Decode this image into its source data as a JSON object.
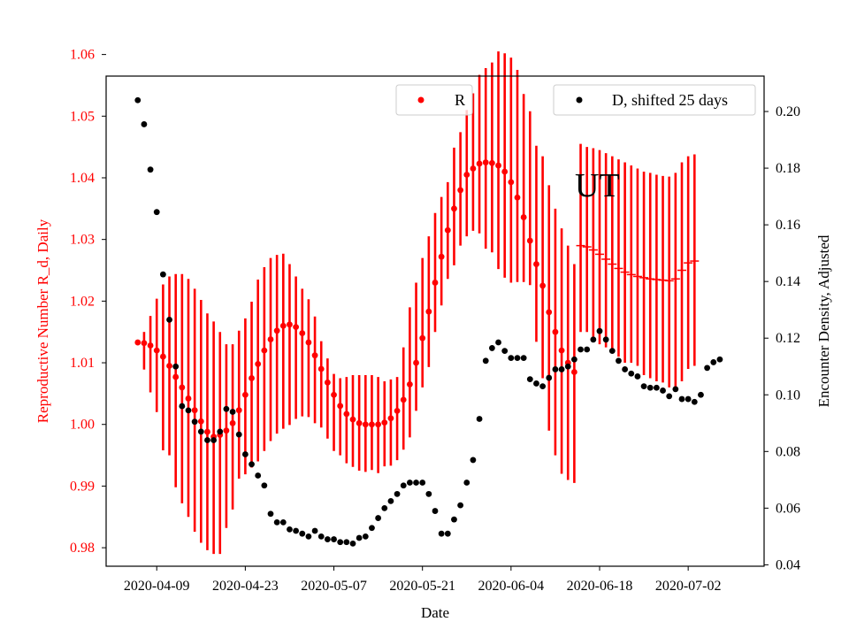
{
  "chart_data": {
    "type": "scatter",
    "title": "",
    "xlabel": "Date",
    "ylabel_left": "Reproductive Number R_d, Daily",
    "ylabel_right": "Encounter Density, Adjusted",
    "annotation": "UT",
    "colors": {
      "r_series": "#ff0000",
      "d_series": "#000000",
      "left_axis_text": "#ff0000"
    },
    "x_start": "2020-04-06",
    "x_end": "2020-07-09",
    "xlim": [
      "2020-04-01",
      "2020-07-14"
    ],
    "y_left_lim": [
      0.977,
      1.0565
    ],
    "y_right_lim": [
      0.0395,
      0.2125
    ],
    "x_ticks": [
      "2020-04-09",
      "2020-04-23",
      "2020-05-07",
      "2020-05-21",
      "2020-06-04",
      "2020-06-18",
      "2020-07-02"
    ],
    "y_left_ticks": [
      "0.98",
      "0.99",
      "1.00",
      "1.01",
      "1.02",
      "1.03",
      "1.04",
      "1.05",
      "1.06"
    ],
    "y_right_ticks": [
      "0.04",
      "0.06",
      "0.08",
      "0.10",
      "0.12",
      "0.14",
      "0.16",
      "0.18",
      "0.20"
    ],
    "legend": [
      {
        "label": "R",
        "color": "#ff0000",
        "placement": "top-center"
      },
      {
        "label": "D, shifted 25 days",
        "color": "#000000",
        "placement": "top-right"
      }
    ],
    "series": [
      {
        "name": "R",
        "axis": "left",
        "color": "#ff0000",
        "y": [
          1.0133,
          1.0132,
          1.0128,
          1.012,
          1.011,
          1.0095,
          1.0077,
          1.006,
          1.0042,
          1.0023,
          1.0005,
          0.9988,
          0.998,
          0.9983,
          0.999,
          1.0002,
          1.0023,
          1.0048,
          1.0075,
          1.0098,
          1.012,
          1.0138,
          1.0152,
          1.016,
          1.0162,
          1.0158,
          1.0148,
          1.0133,
          1.0112,
          1.009,
          1.0068,
          1.0048,
          1.003,
          1.0017,
          1.0008,
          1.0002,
          1.0,
          1.0,
          1.0,
          1.0003,
          1.001,
          1.0022,
          1.004,
          1.0065,
          1.01,
          1.014,
          1.0183,
          1.023,
          1.0272,
          1.0315,
          1.035,
          1.038,
          1.0405,
          1.0415,
          1.0423,
          1.0425,
          1.0424,
          1.042,
          1.041,
          1.0393,
          1.0368,
          1.0336,
          1.0298,
          1.026,
          1.0225,
          1.0182,
          1.015,
          1.012,
          1.01,
          1.0085,
          1.029,
          1.0288,
          1.0283,
          1.0276,
          1.0268,
          1.026,
          1.0253,
          1.0247,
          1.0243,
          1.024,
          1.0238,
          1.0236,
          1.0235,
          1.0234,
          1.0233,
          1.0236,
          1.025,
          1.0262,
          1.0265
        ],
        "yerr_low": [
          1.0132,
          1.0089,
          1.0052,
          1.002,
          0.9958,
          0.995,
          0.9898,
          0.9872,
          0.985,
          0.9826,
          0.9808,
          0.9796,
          0.979,
          0.979,
          0.9832,
          0.9862,
          0.9912,
          0.9919,
          0.993,
          0.994,
          0.9957,
          0.9973,
          0.9985,
          0.9993,
          0.9999,
          1.0009,
          1.0013,
          1.0012,
          1.0002,
          0.9995,
          0.9977,
          0.9957,
          0.995,
          0.9937,
          0.9931,
          0.9925,
          0.9923,
          0.9926,
          0.9921,
          0.9932,
          0.9933,
          0.9942,
          0.9959,
          0.9979,
          1.0022,
          1.006,
          1.0093,
          1.015,
          1.0193,
          1.0236,
          1.0258,
          1.029,
          1.0305,
          1.0314,
          1.031,
          1.0285,
          1.0279,
          1.0252,
          1.0238,
          1.023,
          1.0231,
          1.0231,
          1.0226,
          1.0134,
          1.0075,
          0.999,
          0.995,
          0.992,
          0.991,
          0.9905,
          1.015,
          1.015,
          1.014,
          1.013,
          1.0125,
          1.012,
          1.011,
          1.01,
          1.01,
          1.0095,
          1.008,
          1.0075,
          1.007,
          1.0068,
          1.006,
          1.006,
          1.007,
          1.009,
          1.0095
        ],
        "yerr_high": [
          1.0132,
          1.015,
          1.0176,
          1.0204,
          1.0227,
          1.024,
          1.0244,
          1.0244,
          1.0236,
          1.022,
          1.0202,
          1.018,
          1.0167,
          1.015,
          1.013,
          1.013,
          1.0152,
          1.0172,
          1.0199,
          1.0235,
          1.0255,
          1.027,
          1.0275,
          1.0277,
          1.026,
          1.024,
          1.022,
          1.0203,
          1.0175,
          1.0135,
          1.0107,
          1.0082,
          1.0075,
          1.0077,
          1.008,
          1.008,
          1.008,
          1.008,
          1.0077,
          1.007,
          1.0073,
          1.0077,
          1.0125,
          1.019,
          1.023,
          1.027,
          1.0305,
          1.0343,
          1.0369,
          1.0393,
          1.0449,
          1.0474,
          1.051,
          1.0537,
          1.0567,
          1.0578,
          1.0587,
          1.0605,
          1.0602,
          1.0595,
          1.0575,
          1.0536,
          1.0508,
          1.0452,
          1.0435,
          1.0388,
          1.035,
          1.0318,
          1.029,
          1.026,
          1.0455,
          1.045,
          1.0448,
          1.0445,
          1.044,
          1.0435,
          1.043,
          1.0425,
          1.042,
          1.0415,
          1.041,
          1.0408,
          1.0405,
          1.0403,
          1.0402,
          1.0408,
          1.0425,
          1.0435,
          1.0438
        ]
      },
      {
        "name": "D, shifted 25 days",
        "axis": "right",
        "color": "#000000",
        "y": [
          0.204,
          0.1955,
          0.1795,
          0.1645,
          0.1425,
          0.1265,
          0.11,
          0.096,
          0.0945,
          0.0905,
          0.087,
          0.084,
          0.084,
          0.087,
          0.095,
          0.094,
          0.086,
          0.079,
          0.0755,
          0.0715,
          0.068,
          0.058,
          0.055,
          0.055,
          0.0525,
          0.052,
          0.051,
          0.05,
          0.052,
          0.05,
          0.049,
          0.049,
          0.048,
          0.048,
          0.0475,
          0.0495,
          0.05,
          0.053,
          0.0565,
          0.06,
          0.0625,
          0.065,
          0.068,
          0.069,
          0.069,
          0.069,
          0.065,
          0.059,
          0.051,
          0.051,
          0.056,
          0.061,
          0.069,
          0.077,
          0.0915,
          0.112,
          0.1165,
          0.1185,
          0.1155,
          0.113,
          0.113,
          0.113,
          0.1055,
          0.104,
          0.103,
          0.106,
          0.109,
          0.109,
          0.11,
          0.1125,
          0.116,
          0.116,
          0.1195,
          0.1225,
          0.1195,
          0.1155,
          0.112,
          0.109,
          0.1075,
          0.1065,
          0.103,
          0.1025,
          0.1025,
          0.1015,
          0.0995,
          0.102,
          0.0985,
          0.0985,
          0.0975,
          0.1,
          0.1095,
          0.1115,
          0.1125
        ]
      }
    ]
  }
}
